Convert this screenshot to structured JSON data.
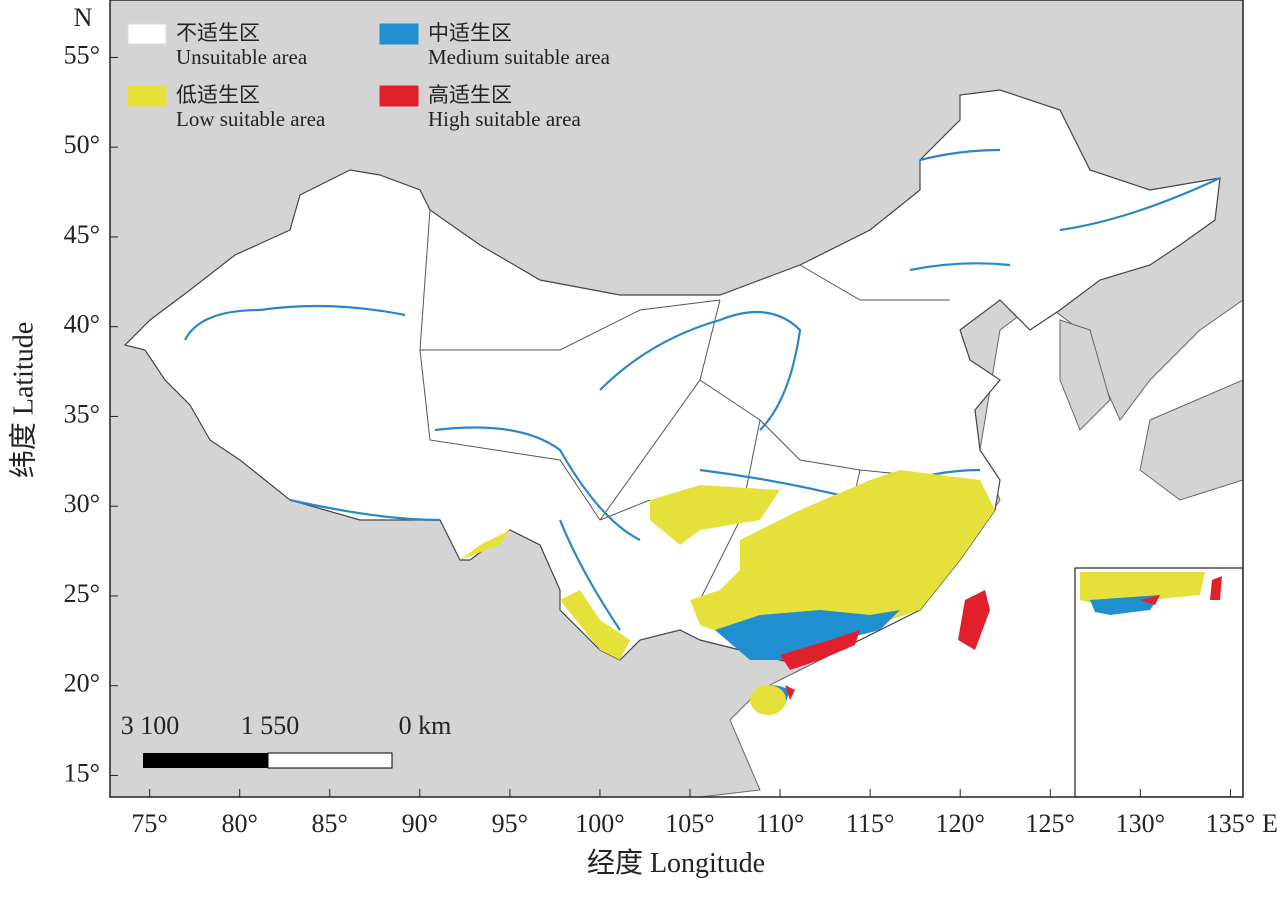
{
  "map": {
    "legend": [
      {
        "zh": "不适生区",
        "en": "Unsuitable area",
        "color": "#ffffff"
      },
      {
        "zh": "中适生区",
        "en": "Medium suitable area",
        "color": "#1f8fd0"
      },
      {
        "zh": "低适生区",
        "en": "Low suitable area",
        "color": "#e6e13a"
      },
      {
        "zh": "高适生区",
        "en": "High suitable area",
        "color": "#e0202a"
      }
    ],
    "x_axis": {
      "label": "经度 Longitude",
      "direction": "E",
      "xlim": [
        72.8,
        135.7
      ],
      "ticks": [
        {
          "value": 75,
          "label": "75°"
        },
        {
          "value": 80,
          "label": "80°"
        },
        {
          "value": 85,
          "label": "85°"
        },
        {
          "value": 90,
          "label": "90°"
        },
        {
          "value": 95,
          "label": "95°"
        },
        {
          "value": 100,
          "label": "100°"
        },
        {
          "value": 105,
          "label": "105°"
        },
        {
          "value": 110,
          "label": "110°"
        },
        {
          "value": 115,
          "label": "115°"
        },
        {
          "value": 120,
          "label": "120°"
        },
        {
          "value": 125,
          "label": "125°"
        },
        {
          "value": 130,
          "label": "130°"
        },
        {
          "value": 135,
          "label": "135°"
        }
      ]
    },
    "y_axis": {
      "label": "纬度 Latitude",
      "direction": "N",
      "ylim": [
        13.8,
        58.2
      ],
      "ticks": [
        {
          "value": 15,
          "label": "15°"
        },
        {
          "value": 20,
          "label": "20°"
        },
        {
          "value": 25,
          "label": "25°"
        },
        {
          "value": 30,
          "label": "30°"
        },
        {
          "value": 35,
          "label": "35°"
        },
        {
          "value": 40,
          "label": "40°"
        },
        {
          "value": 45,
          "label": "45°"
        },
        {
          "value": 50,
          "label": "50°"
        },
        {
          "value": 55,
          "label": "55°"
        }
      ]
    },
    "scale_bar": {
      "labels": [
        "3 100",
        "1 550",
        "0 km"
      ]
    }
  }
}
